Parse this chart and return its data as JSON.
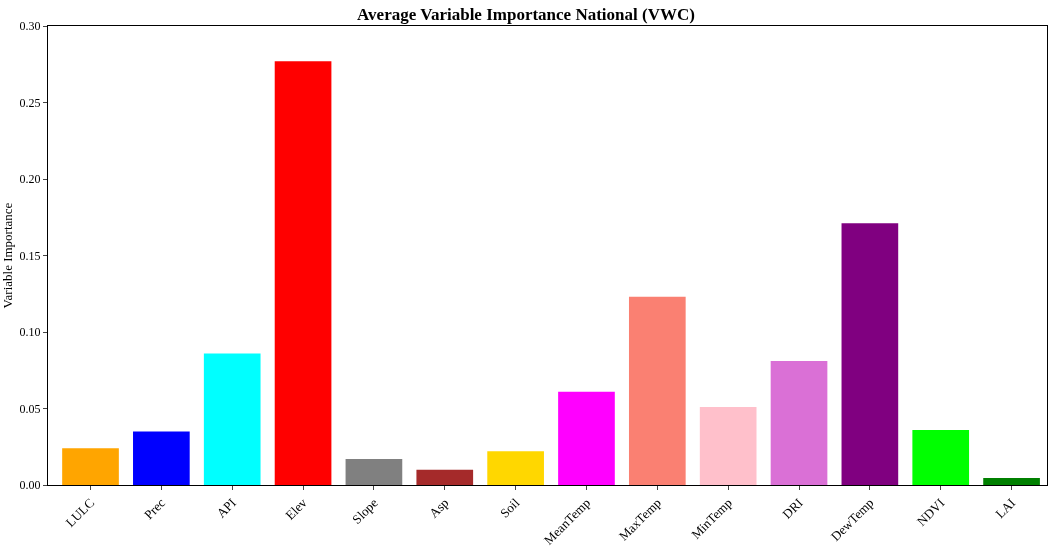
{
  "chart_data": {
    "type": "bar",
    "title": "Average Variable Importance National (VWC)",
    "ylabel": "Variable Importance",
    "categories": [
      "LULC",
      "Prec",
      "API",
      "Elev",
      "Slope",
      "Asp",
      "Soil",
      "MeanTemp",
      "MaxTemp",
      "MinTemp",
      "DRI",
      "DewTemp",
      "NDVI",
      "LAI"
    ],
    "values": [
      0.024,
      0.035,
      0.086,
      0.277,
      0.017,
      0.01,
      0.022,
      0.061,
      0.123,
      0.051,
      0.081,
      0.171,
      0.036,
      0.0045
    ],
    "colors": [
      "#ffa500",
      "#0000ff",
      "#00ffff",
      "#ff0000",
      "#808080",
      "#a52a2a",
      "#ffd700",
      "#ff00ff",
      "#fa8072",
      "#ffc0cb",
      "#da70d6",
      "#800080",
      "#00ff00",
      "#008000"
    ],
    "ylim": [
      0,
      0.3
    ],
    "yticks": [
      {
        "value": 0,
        "label": "0.00"
      },
      {
        "value": 0.05,
        "label": "0.05"
      },
      {
        "value": 0.1,
        "label": "0.10"
      },
      {
        "value": 0.15,
        "label": "0.15"
      },
      {
        "value": 0.2,
        "label": "0.20"
      },
      {
        "value": 0.25,
        "label": "0.25"
      },
      {
        "value": 0.3,
        "label": "0.30"
      }
    ]
  }
}
